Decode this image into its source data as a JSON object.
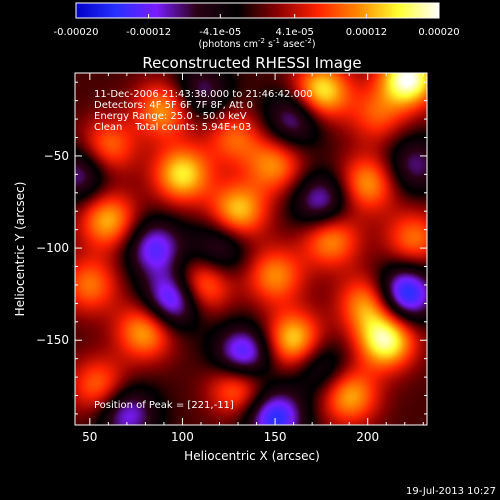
{
  "chart_data": {
    "type": "heatmap",
    "title": "Reconstructed RHESSI Image",
    "xlabel": "Heliocentric X (arcsec)",
    "ylabel": "Heliocentric Y (arcsec)",
    "xlim": [
      42,
      232
    ],
    "ylim": [
      -196,
      -5
    ],
    "x_ticks": [
      50,
      100,
      150,
      200
    ],
    "y_ticks": [
      -50,
      -100,
      -150
    ],
    "x_tick_labels": [
      "50",
      "100",
      "150",
      "200"
    ],
    "y_tick_labels": [
      "−50",
      "−100",
      "−150"
    ],
    "colorbar": {
      "range": [
        -0.0002,
        0.0002
      ],
      "tick_values": [
        -0.0002,
        -0.00012,
        -4.1e-05,
        4.1e-05,
        0.00012,
        0.0002
      ],
      "tick_labels": [
        "-0.00020",
        "-0.00012",
        "-4.1e-05",
        "4.1e-05",
        "0.00012",
        "0.00020"
      ],
      "unit_label_parts": {
        "open": "(photons cm",
        "exp1": "-2",
        "mid1": " s",
        "exp2": "-1",
        "mid2": " asec",
        "exp3": "-2",
        "close": ")"
      },
      "colors": [
        "#0000c8",
        "#2830ff",
        "#7a1cff",
        "#2a0014",
        "#000000",
        "#8a0000",
        "#ff2200",
        "#ff8800",
        "#ffff30",
        "#ffffff"
      ]
    },
    "info_lines": [
      "11-Dec-2006 21:43:38.000 to 21:46:42.000",
      "Detectors: 4F 5F 6F 7F 8F, Att 0",
      "Energy Range: 25.0 - 50.0 keV",
      "Clean    Total counts: 5.94E+03"
    ],
    "peak_label": "Position of Peak = [221,-11]",
    "peak_position": [
      221,
      -11
    ],
    "footer_date": "19-Jul-2013 10:27",
    "sources": [
      {
        "x": 222,
        "y": -8,
        "v": 0.0002
      },
      {
        "x": 175,
        "y": -15,
        "v": 0.00016
      },
      {
        "x": 90,
        "y": -25,
        "v": 0.00012
      },
      {
        "x": 128,
        "y": -40,
        "v": 9e-05
      },
      {
        "x": 205,
        "y": -28,
        "v": 8e-05
      },
      {
        "x": 60,
        "y": -45,
        "v": 0.0001
      },
      {
        "x": 100,
        "y": -60,
        "v": 0.00015
      },
      {
        "x": 150,
        "y": -55,
        "v": 0.00011
      },
      {
        "x": 200,
        "y": -65,
        "v": 0.00012
      },
      {
        "x": 60,
        "y": -85,
        "v": 0.00013
      },
      {
        "x": 130,
        "y": -80,
        "v": 0.00014
      },
      {
        "x": 180,
        "y": -95,
        "v": 0.00012
      },
      {
        "x": 225,
        "y": -95,
        "v": 0.0001
      },
      {
        "x": 50,
        "y": -120,
        "v": 0.0001
      },
      {
        "x": 110,
        "y": -120,
        "v": 0.00013
      },
      {
        "x": 150,
        "y": -115,
        "v": 0.00011
      },
      {
        "x": 200,
        "y": -130,
        "v": 0.00012
      },
      {
        "x": 80,
        "y": -145,
        "v": 0.00013
      },
      {
        "x": 160,
        "y": -150,
        "v": 0.00015
      },
      {
        "x": 210,
        "y": -150,
        "v": 0.00018
      },
      {
        "x": 55,
        "y": -175,
        "v": 0.0001
      },
      {
        "x": 130,
        "y": -175,
        "v": 0.00012
      },
      {
        "x": 190,
        "y": -180,
        "v": 0.00013
      },
      {
        "x": 85,
        "y": -100,
        "v": -0.00013
      },
      {
        "x": 95,
        "y": -128,
        "v": -0.00017
      },
      {
        "x": 133,
        "y": -158,
        "v": -0.00016
      },
      {
        "x": 150,
        "y": -192,
        "v": -0.00016
      },
      {
        "x": 220,
        "y": -125,
        "v": -0.00018
      },
      {
        "x": 175,
        "y": -75,
        "v": -0.00012
      },
      {
        "x": 45,
        "y": -60,
        "v": -0.0001
      },
      {
        "x": 110,
        "y": -15,
        "v": -9e-05
      },
      {
        "x": 160,
        "y": -30,
        "v": -0.00011
      },
      {
        "x": 225,
        "y": -55,
        "v": -9e-05
      },
      {
        "x": 70,
        "y": -190,
        "v": -0.00012
      },
      {
        "x": 120,
        "y": -100,
        "v": -9e-05
      },
      {
        "x": 175,
        "y": -165,
        "v": -8e-05
      }
    ]
  }
}
